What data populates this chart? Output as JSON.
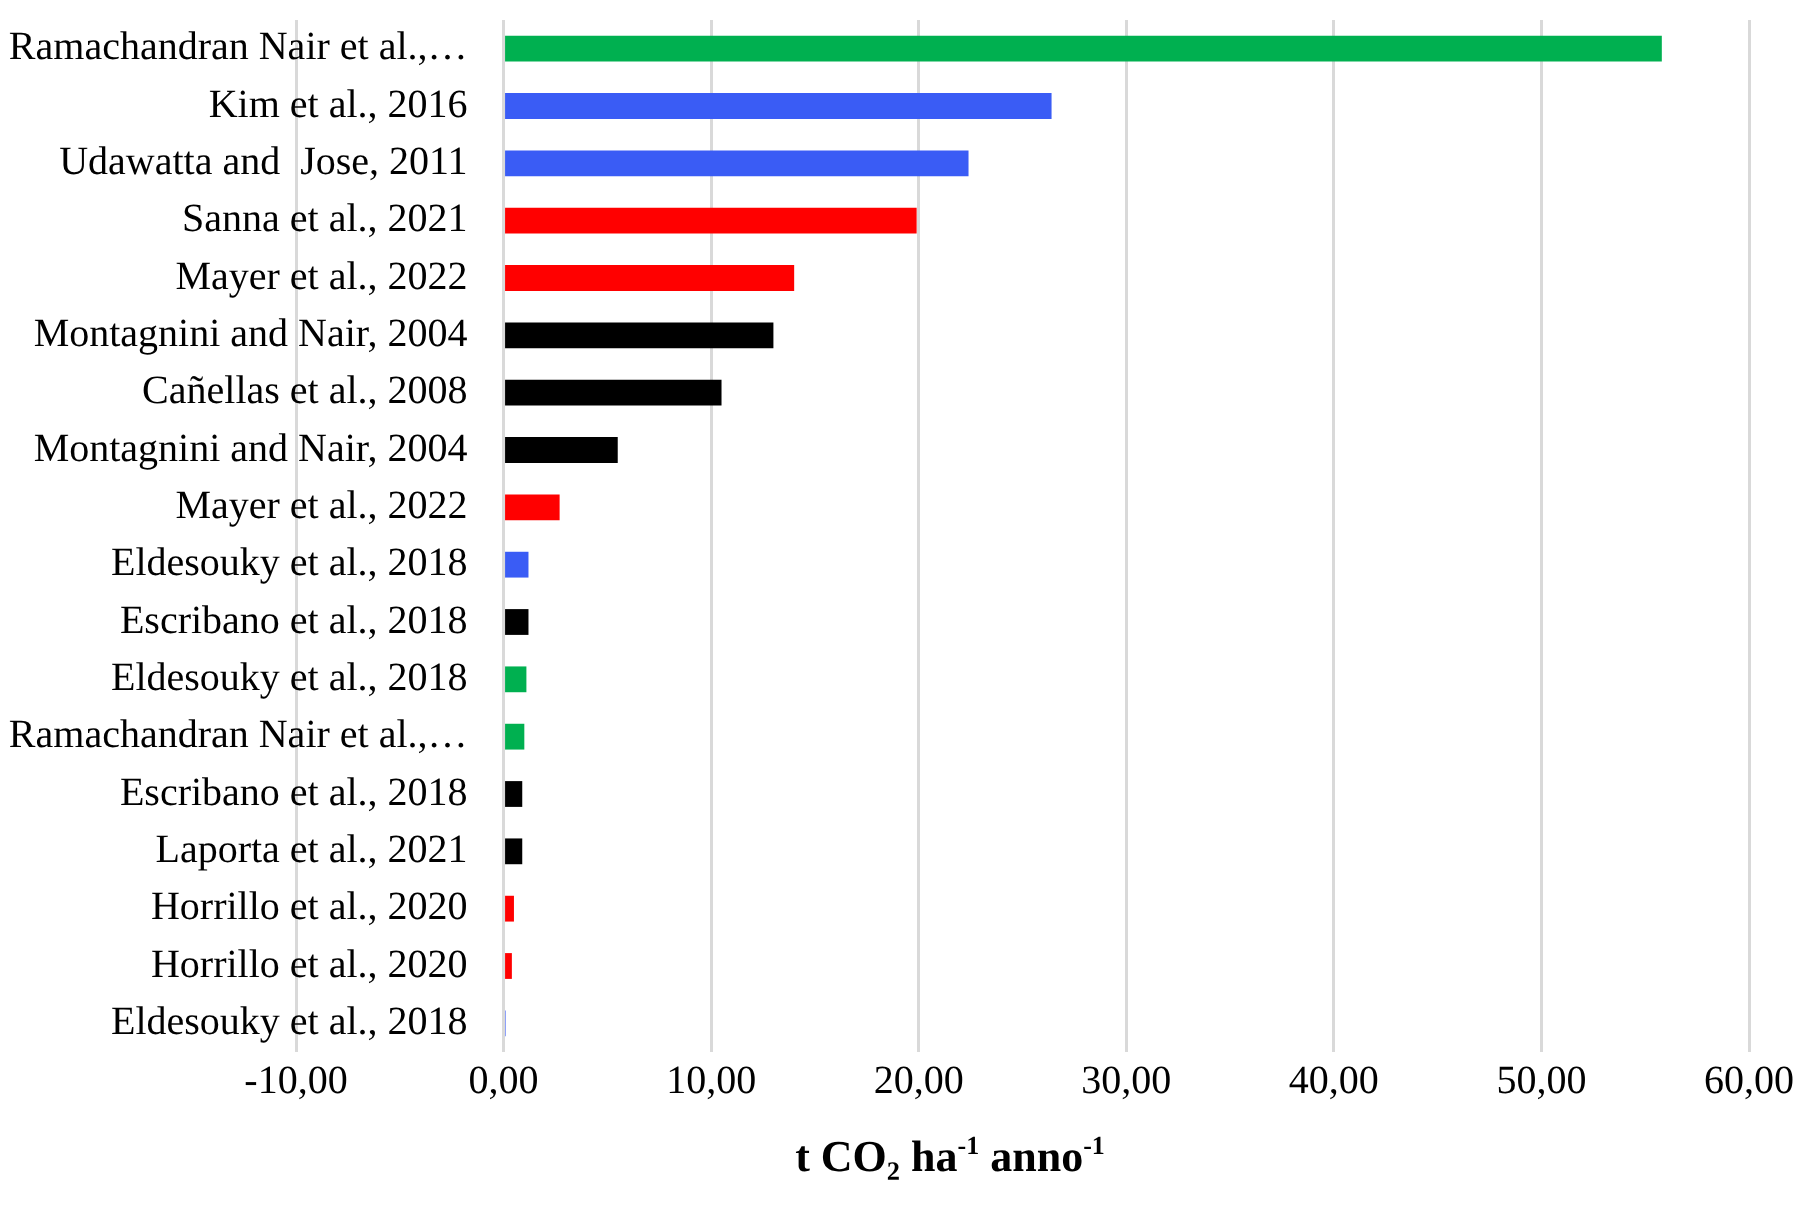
{
  "chart_data": {
    "type": "bar",
    "orientation": "horizontal",
    "xlabel": "t CO₂ ha$^{-1}$ anno$^{-1}$",
    "categories": [
      "Ramachandran Nair et al.,…",
      "Kim et al., 2016",
      "Udawatta and  Jose, 2011",
      "Sanna et al., 2021",
      "Mayer et al., 2022",
      "Montagnini and Nair, 2004",
      "Cañellas et al., 2008",
      "Montagnini and Nair, 2004",
      "Mayer et al., 2022",
      "Eldesouky et al., 2018",
      "Escribano et al., 2018",
      "Eldesouky et al., 2018",
      "Ramachandran Nair et al.,…",
      "Escribano et al., 2018",
      "Laporta et al., 2021",
      "Horrillo et al., 2020",
      "Horrillo et al., 2020",
      "Eldesouky et al., 2018"
    ],
    "values": [
      55.8,
      26.4,
      22.4,
      19.9,
      14.0,
      13.0,
      10.5,
      5.5,
      2.7,
      1.2,
      1.2,
      1.1,
      1.0,
      0.9,
      0.9,
      0.5,
      0.4,
      0.1
    ],
    "colors": [
      "#00b050",
      "#3a5cf5",
      "#3a5cf5",
      "#ff0000",
      "#ff0000",
      "#000000",
      "#000000",
      "#000000",
      "#ff0000",
      "#3a5cf5",
      "#000000",
      "#00b050",
      "#00b050",
      "#000000",
      "#000000",
      "#ff0000",
      "#ff0000",
      "#3a5cf5"
    ],
    "xlim": [
      -10,
      60
    ],
    "xticks": [
      {
        "value": -10,
        "label": "-10,00"
      },
      {
        "value": 0,
        "label": "0,00"
      },
      {
        "value": 10,
        "label": "10,00"
      },
      {
        "value": 20,
        "label": "20,00"
      },
      {
        "value": 30,
        "label": "30,00"
      },
      {
        "value": 40,
        "label": "40,00"
      },
      {
        "value": 50,
        "label": "50,00"
      },
      {
        "value": 60,
        "label": "60,00"
      }
    ],
    "grid": "x",
    "legend": false
  }
}
